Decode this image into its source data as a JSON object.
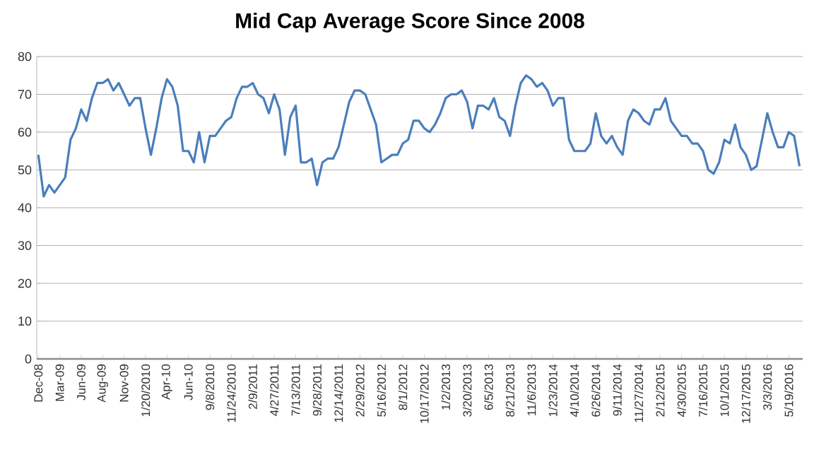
{
  "chart_data": {
    "type": "line",
    "title": "Mid Cap Average Score Since 2008",
    "categories": [
      "Dec-08",
      null,
      null,
      null,
      "Mar-09",
      null,
      null,
      null,
      "Jun-09",
      null,
      null,
      null,
      "Aug-09",
      null,
      null,
      null,
      "Nov-09",
      null,
      null,
      null,
      "1/20/2010",
      null,
      null,
      null,
      "Apr-10",
      null,
      null,
      null,
      "Jun-10",
      null,
      null,
      null,
      "9/8/2010",
      null,
      null,
      null,
      "11/24/2010",
      null,
      null,
      null,
      "2/9/2011",
      null,
      null,
      null,
      "4/27/2011",
      null,
      null,
      null,
      "7/13/2011",
      null,
      null,
      null,
      "9/28/2011",
      null,
      null,
      null,
      "12/14/2011",
      null,
      null,
      null,
      "2/29/2012",
      null,
      null,
      null,
      "5/16/2012",
      null,
      null,
      null,
      "8/1/2012",
      null,
      null,
      null,
      "10/17/2012",
      null,
      null,
      null,
      "1/2/2013",
      null,
      null,
      null,
      "3/20/2013",
      null,
      null,
      null,
      "6/5/2013",
      null,
      null,
      null,
      "8/21/2013",
      null,
      null,
      null,
      "11/6/2013",
      null,
      null,
      null,
      "1/23/2014",
      null,
      null,
      null,
      "4/10/2014",
      null,
      null,
      null,
      "6/26/2014",
      null,
      null,
      null,
      "9/11/2014",
      null,
      null,
      null,
      "11/27/2014",
      null,
      null,
      null,
      "2/12/2015",
      null,
      null,
      null,
      "4/30/2015",
      null,
      null,
      null,
      "7/16/2015",
      null,
      null,
      null,
      "10/1/2015",
      null,
      null,
      null,
      "12/17/2015",
      null,
      null,
      null,
      "3/3/2016",
      null,
      null,
      null,
      "5/19/2016",
      null,
      null
    ],
    "values": [
      54,
      43,
      46,
      44,
      46,
      48,
      58,
      61,
      66,
      63,
      69,
      73,
      73,
      74,
      71,
      73,
      70,
      67,
      69,
      69,
      61,
      54,
      61,
      69,
      74,
      72,
      67,
      55,
      55,
      52,
      60,
      52,
      59,
      59,
      61,
      63,
      64,
      69,
      72,
      72,
      73,
      70,
      69,
      65,
      70,
      66,
      54,
      64,
      67,
      52,
      52,
      53,
      46,
      52,
      53,
      53,
      56,
      62,
      68,
      71,
      71,
      70,
      66,
      62,
      52,
      53,
      54,
      54,
      57,
      58,
      63,
      63,
      61,
      60,
      62,
      65,
      69,
      70,
      70,
      71,
      68,
      61,
      67,
      67,
      66,
      69,
      64,
      63,
      59,
      67,
      73,
      75,
      74,
      72,
      73,
      71,
      67,
      69,
      69,
      58,
      55,
      55,
      55,
      57,
      65,
      59,
      57,
      59,
      56,
      54,
      63,
      66,
      65,
      63,
      62,
      66,
      66,
      69,
      63,
      61,
      59,
      59,
      57,
      57,
      55,
      50,
      49,
      52,
      58,
      57,
      62,
      56,
      54,
      50,
      51,
      58,
      65,
      60,
      56,
      56,
      60,
      59,
      51
    ],
    "color": "#4a7ebb",
    "ylim": [
      0,
      80
    ],
    "yticks": [
      0,
      10,
      20,
      30,
      40,
      50,
      60,
      70,
      80
    ],
    "grid": "y"
  }
}
